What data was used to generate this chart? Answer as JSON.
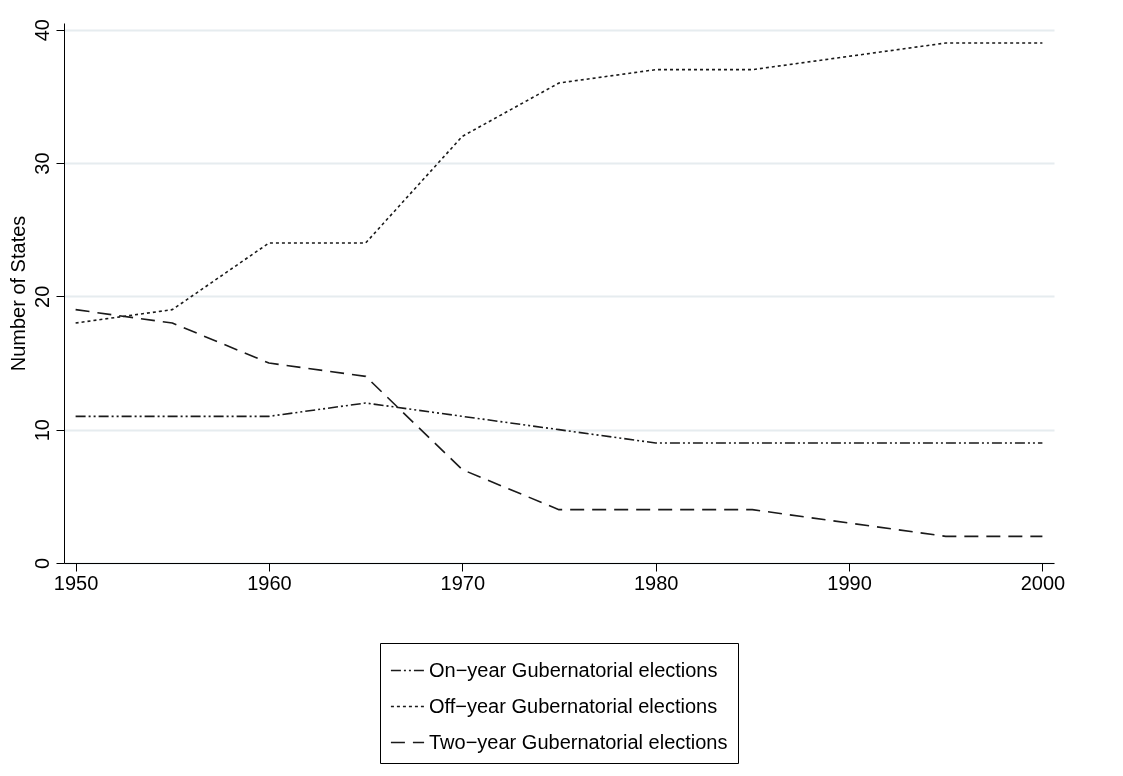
{
  "chart_data": {
    "type": "line",
    "ylabel": "Number of States",
    "x": [
      1950,
      1955,
      1960,
      1965,
      1970,
      1975,
      1980,
      1985,
      1990,
      1995,
      2000
    ],
    "series": [
      {
        "name": "On−year Gubernatorial elections",
        "color": "#1a1a1a",
        "line_style": "dashdot",
        "values": [
          11,
          11,
          11,
          12,
          11,
          10,
          9,
          9,
          9,
          9,
          9
        ]
      },
      {
        "name": "Off−year Gubernatorial elections",
        "color": "#1a1a1a",
        "line_style": "dotted",
        "values": [
          18,
          19,
          24,
          24,
          32,
          36,
          37,
          37,
          38,
          39,
          39
        ]
      },
      {
        "name": "Two−year Gubernatorial elections",
        "color": "#1a1a1a",
        "line_style": "dashed",
        "values": [
          19,
          18,
          15,
          14,
          7,
          4,
          4,
          4,
          3,
          2,
          2
        ]
      }
    ],
    "xlim": [
      1949.4,
      2000.6
    ],
    "xticks": [
      1950,
      1960,
      1970,
      1980,
      1990,
      2000
    ],
    "ylim": [
      0,
      40.5
    ],
    "yticks": [
      0,
      10,
      20,
      30,
      40
    ],
    "grid": "y",
    "legend": "bottom",
    "marker": "none"
  }
}
